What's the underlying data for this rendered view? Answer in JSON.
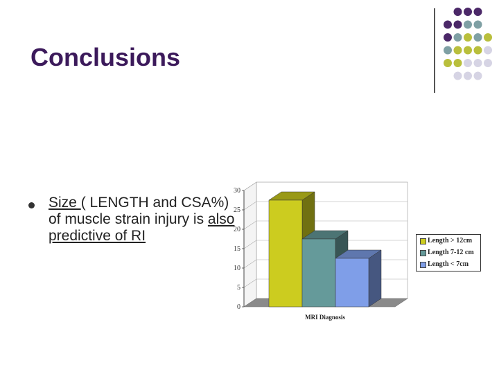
{
  "slide": {
    "title": "Conclusions",
    "bullet": {
      "seg1": "Size ",
      "seg2": "( LENGTH and CSA%)  of muscle strain injury is ",
      "seg3": "also predictive of RI"
    }
  },
  "colors": {
    "title": "#3c1a5b",
    "dot_purple": "#4b2868",
    "dot_teal": "#7fa0a4",
    "dot_olive": "#b9bf3c",
    "dot_lavender": "#d6d4e4"
  },
  "chart_data": {
    "type": "bar",
    "view": "3d",
    "xlabel": "MRI Diagnosis",
    "ylabel": "",
    "ylim": [
      0,
      30
    ],
    "yticks": [
      "0",
      "5",
      "10",
      "15",
      "20",
      "25",
      "30"
    ],
    "grid": true,
    "legend_position": "right",
    "series": [
      {
        "name": "Length > 12cm",
        "value": 27.5,
        "color": "#cccc1f"
      },
      {
        "name": "Length 7-12 cm",
        "value": 17.5,
        "color": "#659a9a"
      },
      {
        "name": "Length < 7cm",
        "value": 12.5,
        "color": "#7f9ee8"
      }
    ]
  }
}
